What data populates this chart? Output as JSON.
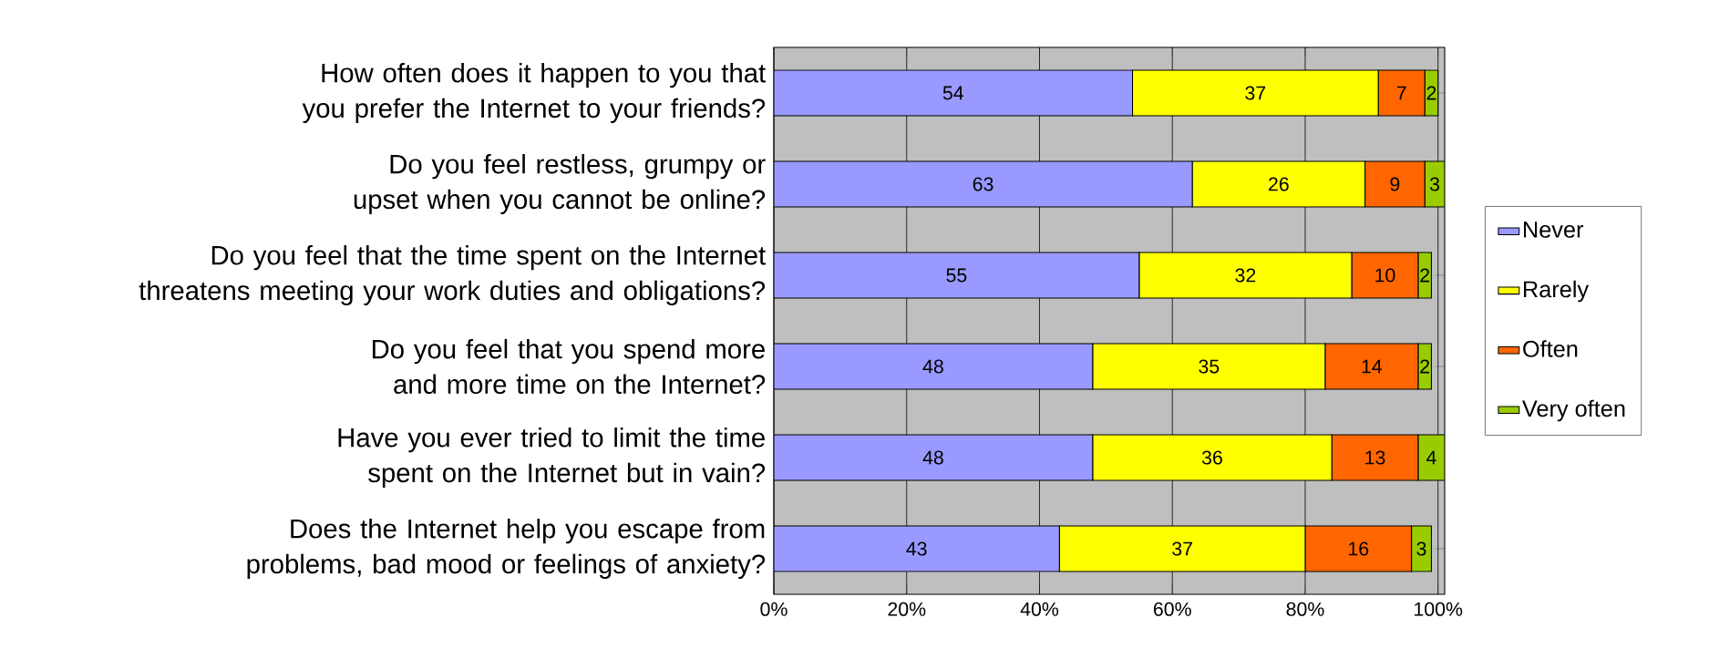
{
  "chart_data": {
    "type": "bar",
    "orientation": "horizontal",
    "stacked": true,
    "data_labels": true,
    "grid": "x",
    "legend": "right",
    "categories": [
      "How often does it happen to you that you prefer the Internet to your friends?",
      "Do you feel restless, grumpy or upset when you cannot be online?",
      "Do you feel that the time spent on the Internet threatens meeting your work duties and obligations?",
      "Do you feel that you spend more and more time on the Internet?",
      "Have you ever tried to limit the time spent on the Internet but in vain?",
      "Does the Internet help you escape from problems, bad mood or feelings of anxiety?"
    ],
    "series": [
      {
        "name": "Never",
        "color": "#9999ff",
        "values": [
          54,
          63,
          55,
          48,
          48,
          43
        ]
      },
      {
        "name": "Rarely",
        "color": "#ffff00",
        "values": [
          37,
          26,
          32,
          35,
          36,
          37
        ]
      },
      {
        "name": "Often",
        "color": "#ff6600",
        "values": [
          7,
          9,
          10,
          14,
          13,
          16
        ]
      },
      {
        "name": "Very often",
        "color": "#99cc00",
        "values": [
          2,
          3,
          2,
          2,
          4,
          3
        ]
      }
    ],
    "xlim": [
      0,
      101
    ],
    "xticks": [
      {
        "value": 0,
        "label": "0%"
      },
      {
        "value": 20,
        "label": "20%"
      },
      {
        "value": 40,
        "label": "40%"
      },
      {
        "value": 60,
        "label": "60%"
      },
      {
        "value": 80,
        "label": "80%"
      },
      {
        "value": 100,
        "label": "100%"
      }
    ]
  }
}
